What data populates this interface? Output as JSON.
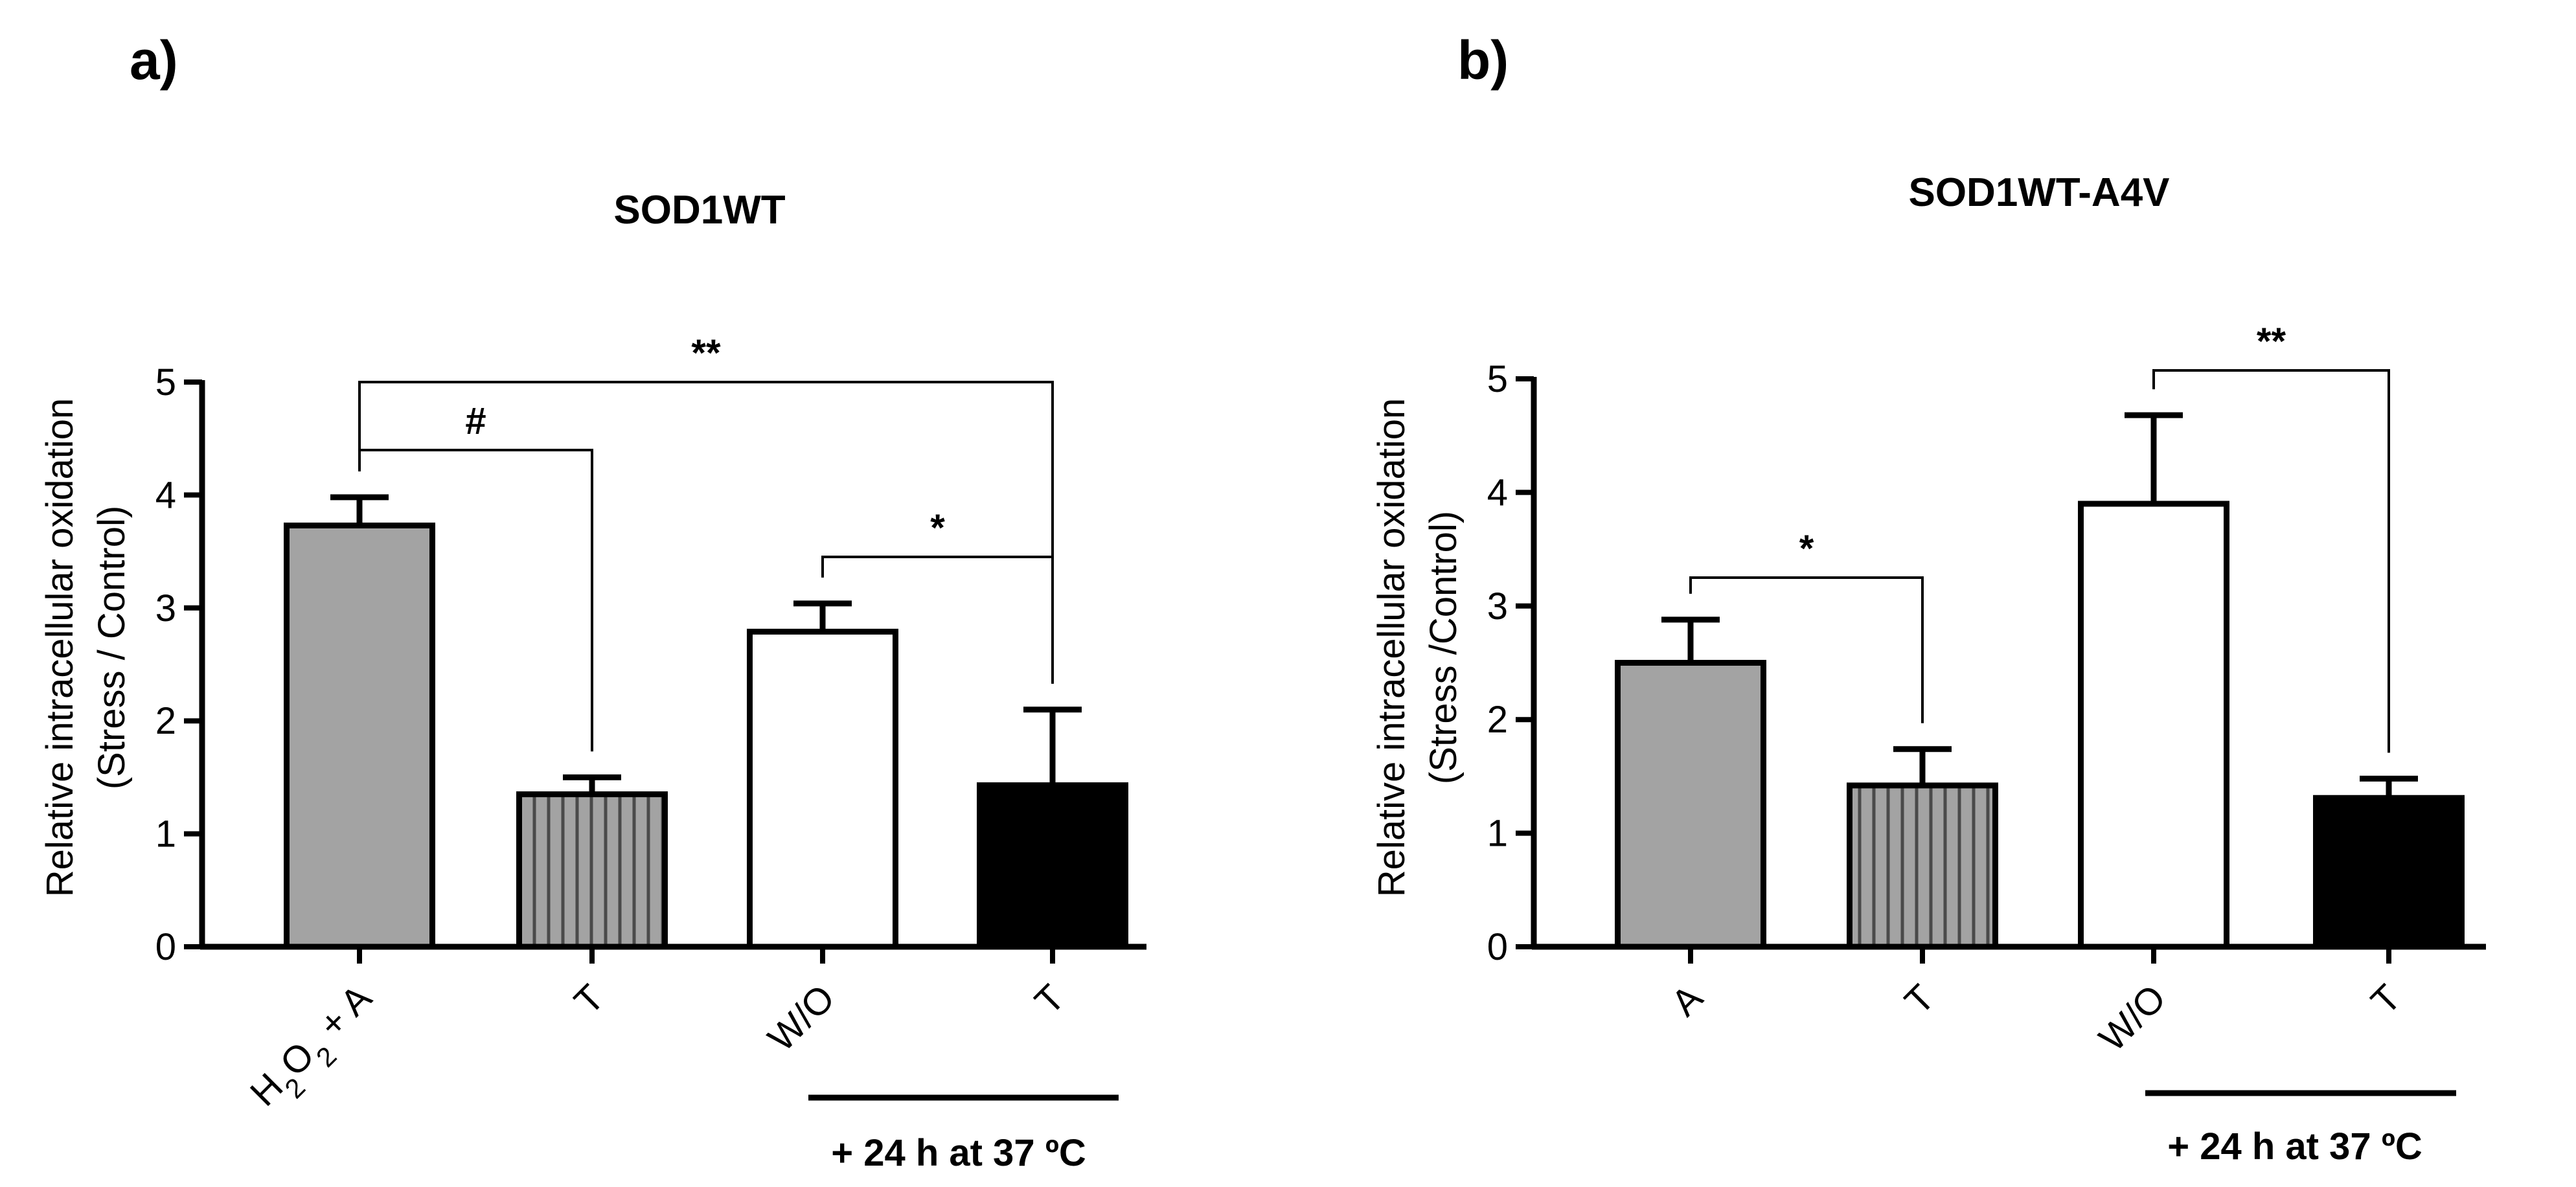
{
  "chart_data": [
    {
      "panel": "a)",
      "type": "bar",
      "title": "SOD1WT",
      "ylabel": "Relative intracellular oxidation (Stress / Control)",
      "ylabel_lines": [
        "Relative intracellular oxidation",
        "(Stress / Control)"
      ],
      "xlabel": "",
      "ylim": [
        0,
        5
      ],
      "yticks": [
        0,
        1,
        2,
        3,
        4,
        5
      ],
      "categories": [
        "H₂O₂ + A",
        "T",
        "W/O",
        "T"
      ],
      "values": [
        3.73,
        1.35,
        2.79,
        1.43
      ],
      "errors": [
        0.25,
        0.15,
        0.25,
        0.67
      ],
      "fills": [
        "gray",
        "striped",
        "white",
        "black"
      ],
      "significance": [
        {
          "from": 0,
          "to": 1,
          "label": "#"
        },
        {
          "from": 0,
          "to": 3,
          "label": "**"
        },
        {
          "from": 2,
          "to": 3,
          "label": "*"
        }
      ],
      "group_bracket": {
        "from": 2,
        "to": 3,
        "label": "+ 24 h at 37 ºC"
      }
    },
    {
      "panel": "b)",
      "type": "bar",
      "title": "SOD1WT-A4V",
      "ylabel": "Relative intracellular oxidation (Stress /Control)",
      "ylabel_lines": [
        "Relative intracellular oxidation",
        "(Stress /Control)"
      ],
      "xlabel": "",
      "ylim": [
        0,
        5
      ],
      "yticks": [
        0,
        1,
        2,
        3,
        4,
        5
      ],
      "categories": [
        "A",
        "T",
        "W/O",
        "T"
      ],
      "values": [
        2.5,
        1.42,
        3.9,
        1.31
      ],
      "errors": [
        0.38,
        0.32,
        0.78,
        0.17
      ],
      "fills": [
        "gray",
        "striped",
        "white",
        "black"
      ],
      "significance": [
        {
          "from": 0,
          "to": 1,
          "label": "*"
        },
        {
          "from": 2,
          "to": 3,
          "label": "**"
        }
      ],
      "group_bracket": {
        "from": 2,
        "to": 3,
        "label": "+ 24 h at 37 ºC"
      }
    }
  ],
  "colors": {
    "gray": "#a3a3a3",
    "stripe_line": "#4a4a4a",
    "black": "#000000",
    "white": "#ffffff",
    "axis": "#000000"
  }
}
